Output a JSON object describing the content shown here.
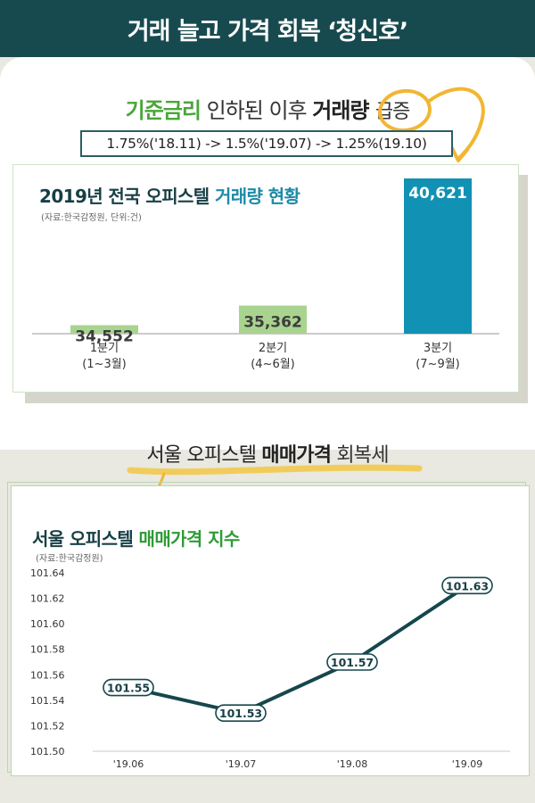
{
  "header": {
    "title": "거래 늘고 가격 회복 ‘청신호’"
  },
  "headline": {
    "part1": "기준금리",
    "part2": " 인하된 이후 ",
    "part3": "거래량",
    "part4": "급증"
  },
  "rates": {
    "text": "1.75%('18.11) -> 1.5%('19.07) -> 1.25%(19.10)"
  },
  "section2": {
    "part1": "서울 오피스텔 ",
    "part2": "매매가격",
    "part3": " 회복세"
  },
  "colors": {
    "navy": "#173f45",
    "teal": "#1d8aa8",
    "green": "#4aa63a",
    "light_green": "#a9d48f",
    "line": "#15474d"
  },
  "chart_data": [
    {
      "type": "bar",
      "title_part1": "2019년 전국 오피스텔 ",
      "title_part2": "거래량 현황",
      "source": "(자료:한국감정원, 단위:건)",
      "categories": [
        "1분기",
        "2분기",
        "3분기"
      ],
      "category_sub": [
        "(1~3월)",
        "(4~6월)",
        "(7~9월)"
      ],
      "values": [
        34552,
        35362,
        40621
      ],
      "value_labels": [
        "34,552",
        "35,362",
        "40,621"
      ],
      "bar_colors": [
        "#a9d48f",
        "#a9d48f",
        "#1191b4"
      ],
      "axis_baseline": 34200,
      "axis_top": 40621
    },
    {
      "type": "line",
      "title_part1": "서울 오피스텔 ",
      "title_part2": "매매가격 지수",
      "source": "(자료:한국감정원)",
      "x": [
        "'19.06",
        "'19.07",
        "'19.08",
        "'19.09"
      ],
      "values": [
        101.55,
        101.53,
        101.57,
        101.63
      ],
      "value_labels": [
        "101.55",
        "101.53",
        "101.57",
        "101.63"
      ],
      "ylim": [
        101.5,
        101.64
      ],
      "yticks": [
        "101.64",
        "101.62",
        "101.60",
        "101.58",
        "101.56",
        "101.54",
        "101.52",
        "101.50"
      ]
    }
  ]
}
